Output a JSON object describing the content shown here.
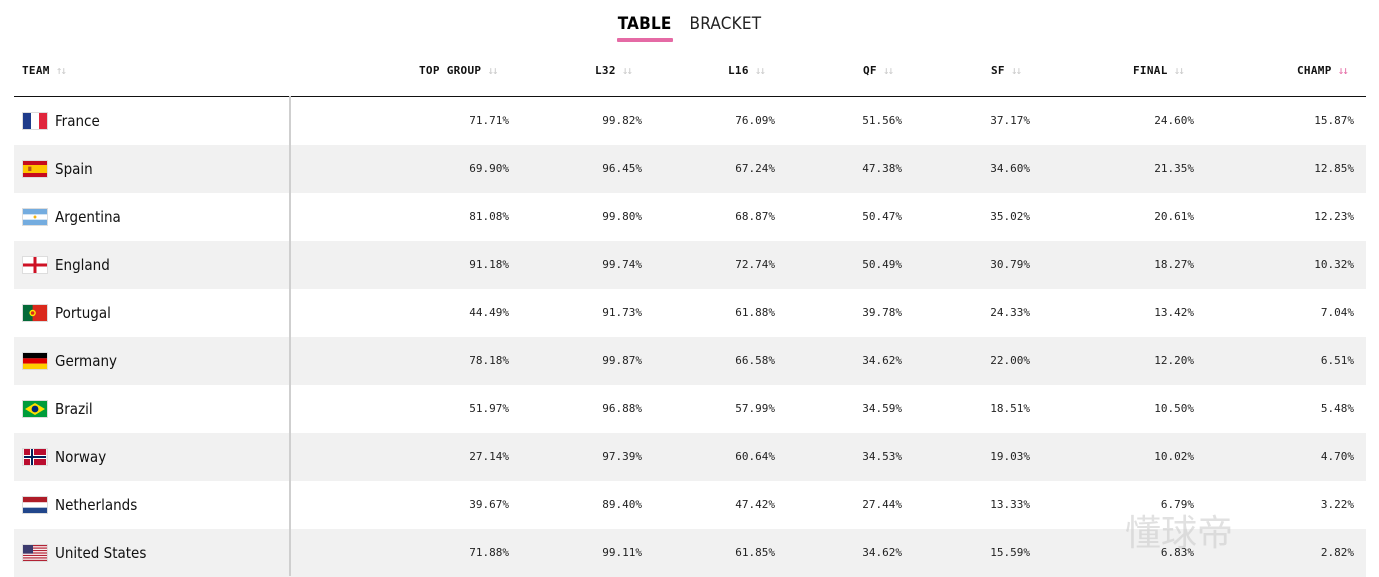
{
  "tabs": [
    {
      "label": "TABLE",
      "active": true
    },
    {
      "label": "BRACKET",
      "active": false
    }
  ],
  "columns": [
    {
      "label": "TEAM",
      "sort_icon": "sort-asc-desc-icon"
    },
    {
      "label": "TOP GROUP",
      "sort_icon": "sort-desc-icon"
    },
    {
      "label": "L32",
      "sort_icon": "sort-desc-icon"
    },
    {
      "label": "L16",
      "sort_icon": "sort-desc-icon"
    },
    {
      "label": "QF",
      "sort_icon": "sort-desc-icon"
    },
    {
      "label": "SF",
      "sort_icon": "sort-desc-icon"
    },
    {
      "label": "FINAL",
      "sort_icon": "sort-desc-icon"
    },
    {
      "label": "CHAMP",
      "sort_icon": "sort-desc-active-icon"
    }
  ],
  "accent_color": "#e56aa5",
  "rows": [
    {
      "team": "France",
      "flag": "france-flag-icon",
      "values": [
        "71.71%",
        "99.82%",
        "76.09%",
        "51.56%",
        "37.17%",
        "24.60%",
        "15.87%"
      ]
    },
    {
      "team": "Spain",
      "flag": "spain-flag-icon",
      "values": [
        "69.90%",
        "96.45%",
        "67.24%",
        "47.38%",
        "34.60%",
        "21.35%",
        "12.85%"
      ]
    },
    {
      "team": "Argentina",
      "flag": "argentina-flag-icon",
      "values": [
        "81.08%",
        "99.80%",
        "68.87%",
        "50.47%",
        "35.02%",
        "20.61%",
        "12.23%"
      ]
    },
    {
      "team": "England",
      "flag": "england-flag-icon",
      "values": [
        "91.18%",
        "99.74%",
        "72.74%",
        "50.49%",
        "30.79%",
        "18.27%",
        "10.32%"
      ]
    },
    {
      "team": "Portugal",
      "flag": "portugal-flag-icon",
      "values": [
        "44.49%",
        "91.73%",
        "61.88%",
        "39.78%",
        "24.33%",
        "13.42%",
        "7.04%"
      ]
    },
    {
      "team": "Germany",
      "flag": "germany-flag-icon",
      "values": [
        "78.18%",
        "99.87%",
        "66.58%",
        "34.62%",
        "22.00%",
        "12.20%",
        "6.51%"
      ]
    },
    {
      "team": "Brazil",
      "flag": "brazil-flag-icon",
      "values": [
        "51.97%",
        "96.88%",
        "57.99%",
        "34.59%",
        "18.51%",
        "10.50%",
        "5.48%"
      ]
    },
    {
      "team": "Norway",
      "flag": "norway-flag-icon",
      "values": [
        "27.14%",
        "97.39%",
        "60.64%",
        "34.53%",
        "19.03%",
        "10.02%",
        "4.70%"
      ]
    },
    {
      "team": "Netherlands",
      "flag": "netherlands-flag-icon",
      "values": [
        "39.67%",
        "89.40%",
        "47.42%",
        "27.44%",
        "13.33%",
        "6.79%",
        "3.22%"
      ]
    },
    {
      "team": "United States",
      "flag": "usa-flag-icon",
      "values": [
        "71.88%",
        "99.11%",
        "61.85%",
        "34.62%",
        "15.59%",
        "6.83%",
        "2.82%"
      ]
    }
  ],
  "watermark": "懂球帝"
}
